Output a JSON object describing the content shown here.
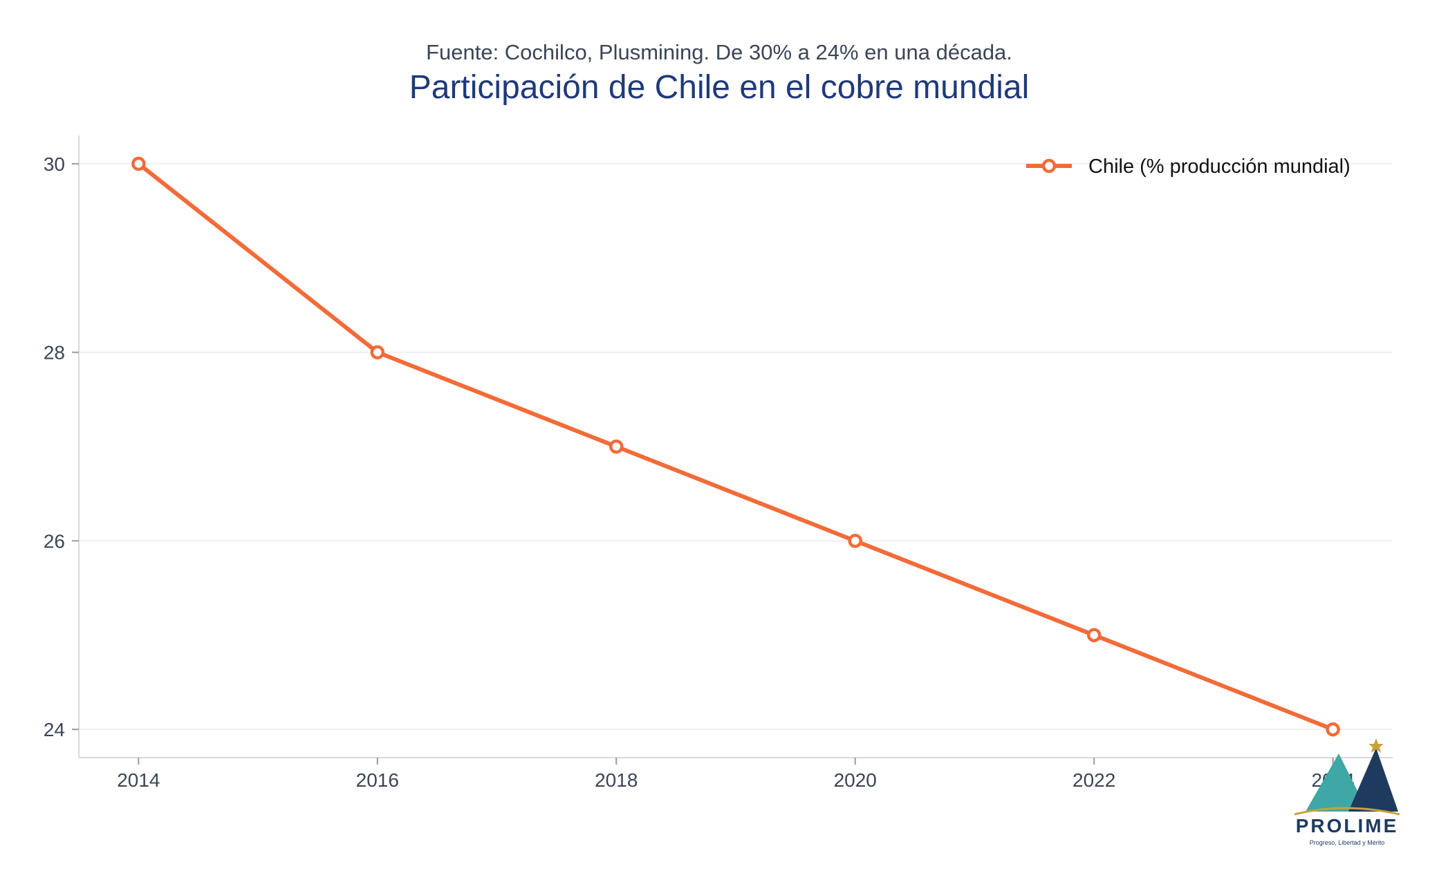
{
  "chart_data": {
    "type": "line",
    "subtitle": "Fuente: Cochilco, Plusmining. De 30% a 24% en una década.",
    "title": "Participación de Chile en el cobre mundial",
    "xlabel": "",
    "ylabel": "",
    "x": [
      2014,
      2016,
      2018,
      2020,
      2022,
      2024
    ],
    "x_ticks": [
      "2014",
      "2016",
      "2018",
      "2020",
      "2022",
      "2024"
    ],
    "y_ticks": [
      "24",
      "26",
      "28",
      "30"
    ],
    "xlim": [
      2013.5,
      2024.5
    ],
    "ylim": [
      23.7,
      30.3
    ],
    "grid": "horizontal",
    "legend_position": "top-right",
    "series": [
      {
        "name": "Chile (% producción mundial)",
        "color": "#f26b38",
        "values": [
          30,
          28,
          27,
          26,
          25,
          24
        ]
      }
    ]
  },
  "logo": {
    "name": "PROLIME",
    "tagline": "Progreso, Libertad y Mérito",
    "colors": {
      "teal": "#3fa7a5",
      "navy": "#1e3a5f",
      "gold": "#c9a23a"
    }
  }
}
